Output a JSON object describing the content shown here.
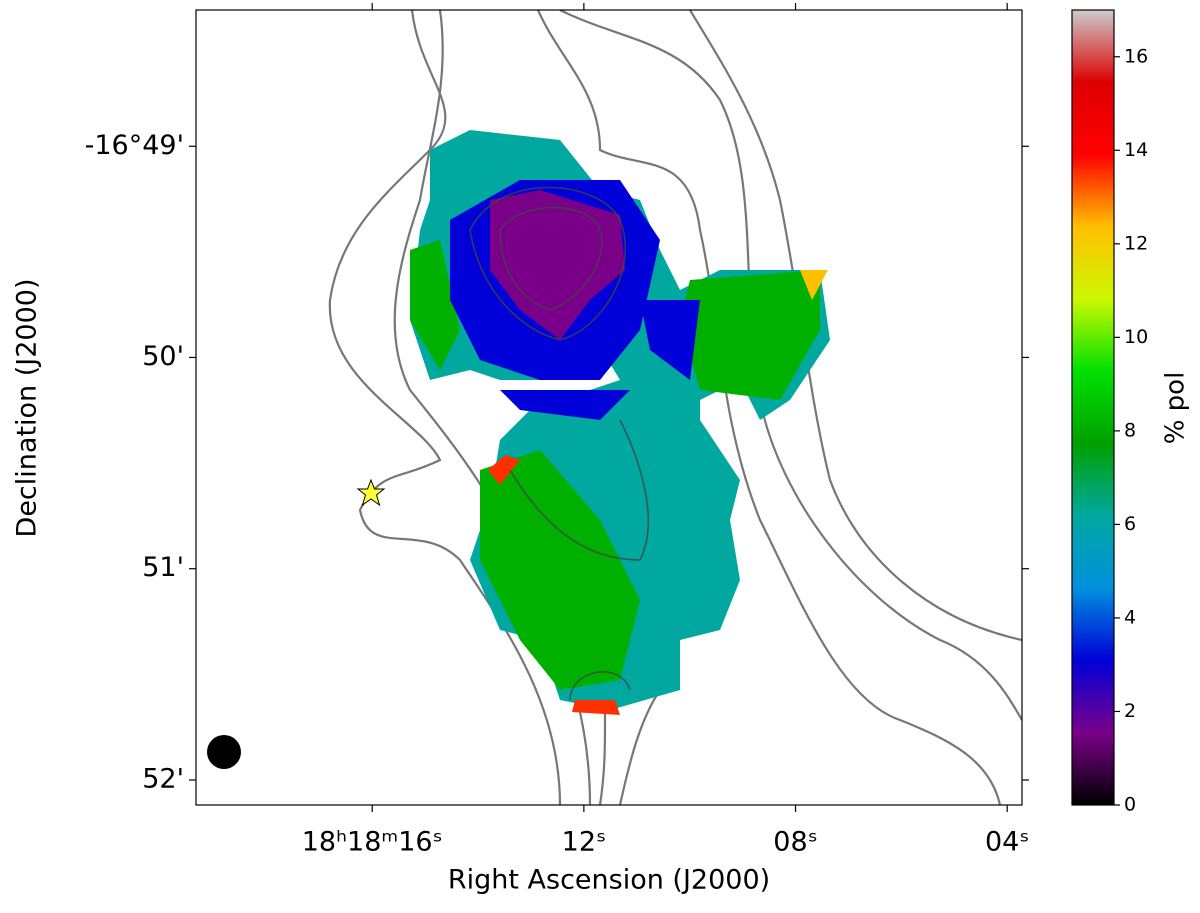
{
  "chart_data": {
    "type": "image",
    "xlabel": "Right Ascension (J2000)",
    "ylabel": "Declination (J2000)",
    "xlim": [
      19.33,
      3.72
    ],
    "xticks": [
      {
        "value": 16,
        "label": "18ʰ18ᵐ16ˢ"
      },
      {
        "value": 12,
        "label": "12ˢ"
      },
      {
        "value": 8,
        "label": "08ˢ"
      },
      {
        "value": 4,
        "label": "04ˢ"
      }
    ],
    "ylim": [
      -16.86864,
      -16.80592
    ],
    "yticks": [
      {
        "value": -16.81667,
        "label": "-16°49'"
      },
      {
        "value": -16.83333,
        "label": "50'"
      },
      {
        "value": -16.85,
        "label": "51'"
      },
      {
        "value": -16.86667,
        "label": "52'"
      }
    ],
    "colorbar": {
      "label": "% pol",
      "clim": [
        0,
        17
      ],
      "ticks": [
        0,
        2,
        4,
        6,
        8,
        10,
        12,
        14,
        16
      ],
      "colormap": [
        "#000000",
        "#7a0089",
        "#0000d8",
        "#0090dd",
        "#00a8a0",
        "#00a000",
        "#00e000",
        "#ccf800",
        "#ffc000",
        "#ff0000",
        "#dd0000",
        "#cccccc"
      ]
    }
  }
}
